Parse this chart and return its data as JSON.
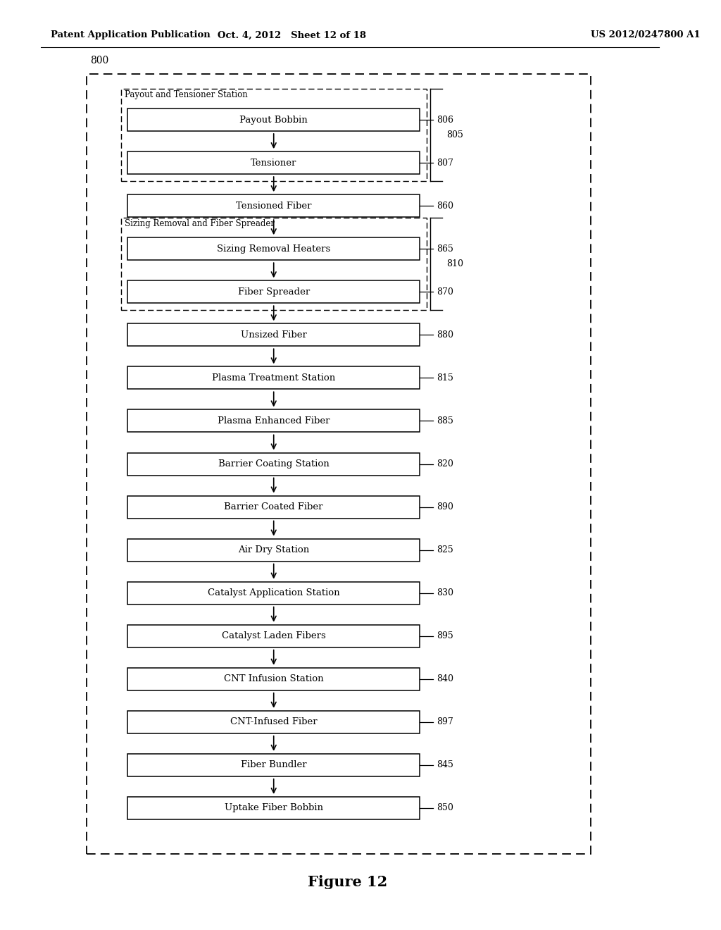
{
  "header_left": "Patent Application Publication",
  "header_mid": "Oct. 4, 2012   Sheet 12 of 18",
  "header_right": "US 2012/0247800 A1",
  "figure_label": "Figure 12",
  "outer_label": "800",
  "boxes": [
    {
      "label": "Payout Bobbin",
      "num": "806"
    },
    {
      "label": "Tensioner",
      "num": "807"
    },
    {
      "label": "Tensioned Fiber",
      "num": "860"
    },
    {
      "label": "Sizing Removal Heaters",
      "num": "865"
    },
    {
      "label": "Fiber Spreader",
      "num": "870"
    },
    {
      "label": "Unsized Fiber",
      "num": "880"
    },
    {
      "label": "Plasma Treatment Station",
      "num": "815"
    },
    {
      "label": "Plasma Enhanced Fiber",
      "num": "885"
    },
    {
      "label": "Barrier Coating Station",
      "num": "820"
    },
    {
      "label": "Barrier Coated Fiber",
      "num": "890"
    },
    {
      "label": "Air Dry Station",
      "num": "825"
    },
    {
      "label": "Catalyst Application Station",
      "num": "830"
    },
    {
      "label": "Catalyst Laden Fibers",
      "num": "895"
    },
    {
      "label": "CNT Infusion Station",
      "num": "840"
    },
    {
      "label": "CNT-Infused Fiber",
      "num": "897"
    },
    {
      "label": "Fiber Bundler",
      "num": "845"
    },
    {
      "label": "Uptake Fiber Bobbin",
      "num": "850"
    }
  ],
  "group_805_label": "Payout and Tensioner Station",
  "group_805_num": "805",
  "group_805_rows": [
    0,
    1
  ],
  "group_810_label": "Sizing Removal and Fiber Spreader",
  "group_810_num": "810",
  "group_810_rows": [
    3,
    4
  ],
  "bg_color": "#ffffff",
  "box_color": "#ffffff",
  "box_edge": "#000000",
  "text_color": "#000000"
}
